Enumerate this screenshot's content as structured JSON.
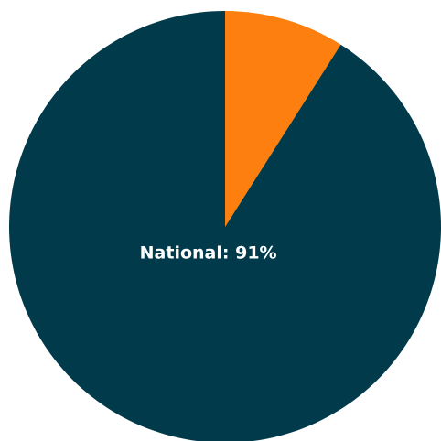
{
  "chart_data": {
    "type": "pie",
    "values": [
      9,
      91
    ],
    "value_labels": [
      null,
      "National: 91%"
    ],
    "colors": [
      "#fd7f0f",
      "#013a4a"
    ]
  }
}
